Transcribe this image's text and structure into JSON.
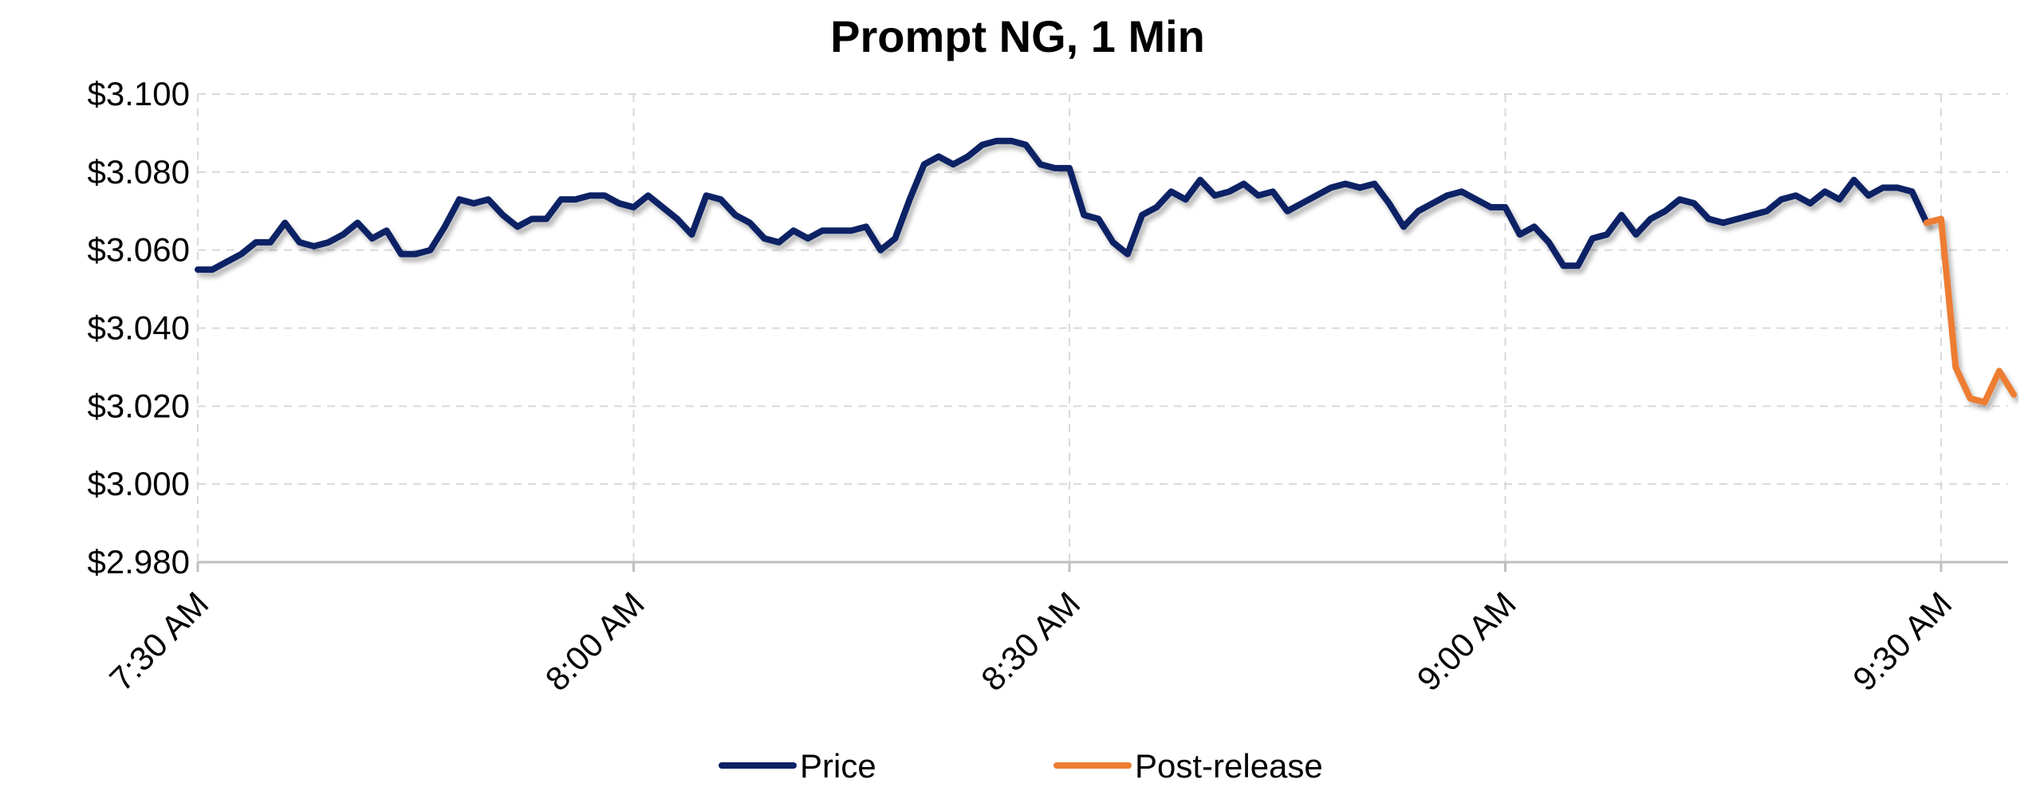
{
  "chart_data": {
    "type": "line",
    "title": "Prompt NG, 1 Min",
    "xlabel": "",
    "ylabel": "",
    "ylim": [
      2.98,
      3.1
    ],
    "y_ticks": [
      "$2.980",
      "$3.000",
      "$3.020",
      "$3.040",
      "$3.060",
      "$3.080",
      "$3.100"
    ],
    "x_range_minutes": [
      "7:30 AM",
      "9:36 AM"
    ],
    "x_ticks": [
      "7:30 AM",
      "8:00 AM",
      "8:30 AM",
      "9:00 AM",
      "9:30 AM"
    ],
    "grid": true,
    "legend_position": "bottom",
    "series": [
      {
        "name": "Price",
        "color": "#0b2265",
        "x": [
          "7:30 AM",
          "7:31 AM",
          "7:32 AM",
          "7:33 AM",
          "7:34 AM",
          "7:35 AM",
          "7:36 AM",
          "7:37 AM",
          "7:38 AM",
          "7:39 AM",
          "7:40 AM",
          "7:41 AM",
          "7:42 AM",
          "7:43 AM",
          "7:44 AM",
          "7:45 AM",
          "7:46 AM",
          "7:47 AM",
          "7:48 AM",
          "7:49 AM",
          "7:50 AM",
          "7:51 AM",
          "7:52 AM",
          "7:53 AM",
          "7:54 AM",
          "7:55 AM",
          "7:56 AM",
          "7:57 AM",
          "7:58 AM",
          "7:59 AM",
          "8:00 AM",
          "8:01 AM",
          "8:02 AM",
          "8:03 AM",
          "8:04 AM",
          "8:05 AM",
          "8:06 AM",
          "8:07 AM",
          "8:08 AM",
          "8:09 AM",
          "8:10 AM",
          "8:11 AM",
          "8:12 AM",
          "8:13 AM",
          "8:14 AM",
          "8:15 AM",
          "8:16 AM",
          "8:17 AM",
          "8:18 AM",
          "8:19 AM",
          "8:20 AM",
          "8:21 AM",
          "8:22 AM",
          "8:23 AM",
          "8:24 AM",
          "8:25 AM",
          "8:26 AM",
          "8:27 AM",
          "8:28 AM",
          "8:29 AM",
          "8:30 AM",
          "8:31 AM",
          "8:32 AM",
          "8:33 AM",
          "8:34 AM",
          "8:35 AM",
          "8:36 AM",
          "8:37 AM",
          "8:38 AM",
          "8:39 AM",
          "8:40 AM",
          "8:41 AM",
          "8:42 AM",
          "8:43 AM",
          "8:44 AM",
          "8:45 AM",
          "8:46 AM",
          "8:47 AM",
          "8:48 AM",
          "8:49 AM",
          "8:50 AM",
          "8:51 AM",
          "8:52 AM",
          "8:53 AM",
          "8:54 AM",
          "8:55 AM",
          "8:56 AM",
          "8:57 AM",
          "8:58 AM",
          "8:59 AM",
          "9:00 AM",
          "9:01 AM",
          "9:02 AM",
          "9:03 AM",
          "9:04 AM",
          "9:05 AM",
          "9:06 AM",
          "9:07 AM",
          "9:08 AM",
          "9:09 AM",
          "9:10 AM",
          "9:11 AM",
          "9:12 AM",
          "9:13 AM",
          "9:14 AM",
          "9:15 AM",
          "9:16 AM",
          "9:17 AM",
          "9:18 AM",
          "9:19 AM",
          "9:20 AM",
          "9:21 AM",
          "9:22 AM",
          "9:23 AM",
          "9:24 AM",
          "9:25 AM",
          "9:26 AM",
          "9:27 AM",
          "9:28 AM",
          "9:29 AM"
        ],
        "values": [
          3.055,
          3.055,
          3.057,
          3.059,
          3.062,
          3.062,
          3.067,
          3.062,
          3.061,
          3.062,
          3.064,
          3.067,
          3.063,
          3.065,
          3.059,
          3.059,
          3.06,
          3.066,
          3.073,
          3.072,
          3.073,
          3.069,
          3.066,
          3.068,
          3.068,
          3.073,
          3.073,
          3.074,
          3.074,
          3.072,
          3.071,
          3.074,
          3.071,
          3.068,
          3.064,
          3.074,
          3.073,
          3.069,
          3.067,
          3.063,
          3.062,
          3.065,
          3.063,
          3.065,
          3.065,
          3.065,
          3.066,
          3.06,
          3.063,
          3.073,
          3.082,
          3.084,
          3.082,
          3.084,
          3.087,
          3.088,
          3.088,
          3.087,
          3.082,
          3.081,
          3.081,
          3.069,
          3.068,
          3.062,
          3.059,
          3.069,
          3.071,
          3.075,
          3.073,
          3.078,
          3.074,
          3.075,
          3.077,
          3.074,
          3.075,
          3.07,
          3.072,
          3.074,
          3.076,
          3.077,
          3.076,
          3.077,
          3.072,
          3.066,
          3.07,
          3.072,
          3.074,
          3.075,
          3.073,
          3.071,
          3.071,
          3.064,
          3.066,
          3.062,
          3.056,
          3.056,
          3.063,
          3.064,
          3.069,
          3.064,
          3.068,
          3.07,
          3.073,
          3.072,
          3.068,
          3.067,
          3.068,
          3.069,
          3.07,
          3.073,
          3.074,
          3.072,
          3.075,
          3.073,
          3.078,
          3.074,
          3.076,
          3.076,
          3.075,
          3.067
        ]
      },
      {
        "name": "Post-release",
        "color": "#ed7d31",
        "x": [
          "9:29 AM",
          "9:30 AM",
          "9:31 AM",
          "9:32 AM",
          "9:33 AM",
          "9:34 AM",
          "9:35 AM"
        ],
        "values": [
          3.067,
          3.068,
          3.03,
          3.022,
          3.021,
          3.029,
          3.023
        ]
      }
    ]
  }
}
